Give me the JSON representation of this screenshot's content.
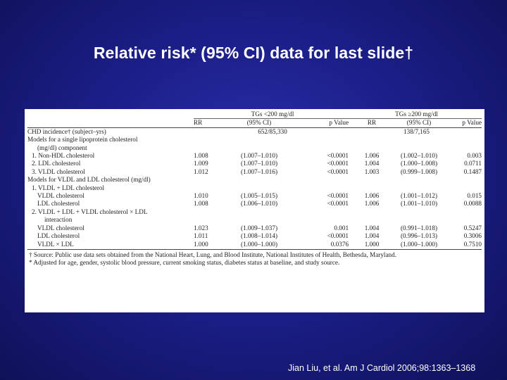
{
  "slide": {
    "title": "Relative risk* (95% CI) data for last slide†",
    "citation": "Jian Liu, et al. Am J Cardiol 2006;98:1363–1368"
  },
  "table": {
    "group_headers": [
      "TGs <200 mg/dl",
      "TGs ≥200 mg/dl"
    ],
    "col_headers": [
      "RR",
      "(95% CI)",
      "p Value",
      "RR",
      "(95% CI)",
      "p Value"
    ],
    "rows": [
      {
        "label": "CHD incidence† (subject–yrs)",
        "indent": 0,
        "rr1": "",
        "ci1": "",
        "p1": "",
        "rr2": "",
        "ci2": "",
        "p2": "",
        "span1": "652/85,330",
        "span2": "138/7,165"
      },
      {
        "label": "Models for a single lipoprotein cholesterol",
        "indent": 0,
        "rr1": "",
        "ci1": "",
        "p1": "",
        "rr2": "",
        "ci2": "",
        "p2": ""
      },
      {
        "label": "(mg/dl) component",
        "indent": 2,
        "rr1": "",
        "ci1": "",
        "p1": "",
        "rr2": "",
        "ci2": "",
        "p2": ""
      },
      {
        "label": "1. Non-HDL cholesterol",
        "indent": 1,
        "rr1": "1.008",
        "ci1": "(1.007–1.010)",
        "p1": "<0.0001",
        "rr2": "1.006",
        "ci2": "(1.002–1.010)",
        "p2": "0.003"
      },
      {
        "label": "2. LDL cholesterol",
        "indent": 1,
        "rr1": "1.009",
        "ci1": "(1.007–1.010)",
        "p1": "<0.0001",
        "rr2": "1.004",
        "ci2": "(1.000–1.008)",
        "p2": "0.0711"
      },
      {
        "label": "3. VLDL cholesterol",
        "indent": 1,
        "rr1": "1.012",
        "ci1": "(1.007–1.016)",
        "p1": "<0.0001",
        "rr2": "1.003",
        "ci2": "(0.999–1.008)",
        "p2": "0.1487"
      },
      {
        "label": "Models for VLDL and LDL cholesterol (mg/dl)",
        "indent": 0,
        "rr1": "",
        "ci1": "",
        "p1": "",
        "rr2": "",
        "ci2": "",
        "p2": ""
      },
      {
        "label": "1. VLDL + LDL cholesterol",
        "indent": 1,
        "rr1": "",
        "ci1": "",
        "p1": "",
        "rr2": "",
        "ci2": "",
        "p2": ""
      },
      {
        "label": "VLDL cholesterol",
        "indent": 2,
        "rr1": "1.010",
        "ci1": "(1.005–1.015)",
        "p1": "<0.0001",
        "rr2": "1.006",
        "ci2": "(1.001–1.012)",
        "p2": "0.015"
      },
      {
        "label": "LDL cholesterol",
        "indent": 2,
        "rr1": "1.008",
        "ci1": "(1.006–1.010)",
        "p1": "<0.0001",
        "rr2": "1.006",
        "ci2": "(1.001–1.010)",
        "p2": "0.0088"
      },
      {
        "label": "2. VLDL + LDL + VLDL cholesterol × LDL",
        "indent": 1,
        "rr1": "",
        "ci1": "",
        "p1": "",
        "rr2": "",
        "ci2": "",
        "p2": ""
      },
      {
        "label": "interaction",
        "indent": 3,
        "rr1": "",
        "ci1": "",
        "p1": "",
        "rr2": "",
        "ci2": "",
        "p2": ""
      },
      {
        "label": "VLDL cholesterol",
        "indent": 2,
        "rr1": "1.023",
        "ci1": "(1.009–1.037)",
        "p1": "0.001",
        "rr2": "1.004",
        "ci2": "(0.991–1.018)",
        "p2": "0.5247"
      },
      {
        "label": "LDL cholesterol",
        "indent": 2,
        "rr1": "1.011",
        "ci1": "(1.008–1.014)",
        "p1": "<0.0001",
        "rr2": "1.004",
        "ci2": "(0.996–1.013)",
        "p2": "0.3006"
      },
      {
        "label": "VLDL × LDL",
        "indent": 2,
        "rr1": "1.000",
        "ci1": "(1.000–1.000)",
        "p1": "0.0376",
        "rr2": "1.000",
        "ci2": "(1.000–1.000)",
        "p2": "0.7510"
      }
    ],
    "footnotes": [
      "† Source: Public use data sets obtained from the National Heart, Lung, and Blood Institute, National Institutes of Health, Bethesda, Maryland.",
      "* Adjusted for age, gender, systolic blood pressure, current smoking status, diabetes status at baseline, and study source."
    ]
  }
}
